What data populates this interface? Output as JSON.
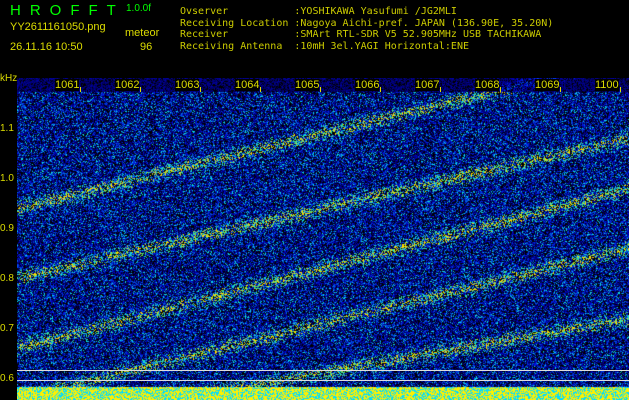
{
  "header": {
    "title": "HROFFT",
    "version": "1.0.0f",
    "filename": "YY2611161050.png",
    "datetime": "26.11.16 10:50",
    "mode": "meteor",
    "count": "96"
  },
  "info": [
    "Ovserver           :YOSHIKAWA Yasufumi /JG2MLI",
    "Receiving Location :Nagoya Aichi-pref. JAPAN (136.90E, 35.20N)",
    "Receiver           :SMArt RTL-SDR V5 52.905MHz USB TACHIKAWA",
    "Receiving Antenna  :10mH 3el.YAGI Horizontal:ENE"
  ],
  "axis": {
    "y_unit": "kHz",
    "y_ticks": [
      "1.1",
      "1.0",
      "0.9",
      "0.8",
      "0.7",
      "0.6"
    ],
    "x_ticks": [
      "1061",
      "1062",
      "1063",
      "1064",
      "1065",
      "1066",
      "1067",
      "1068",
      "1069",
      "1100"
    ]
  },
  "colors": {
    "text": "#dddd00",
    "title": "#00ff00",
    "background_noise": "#000080"
  }
}
